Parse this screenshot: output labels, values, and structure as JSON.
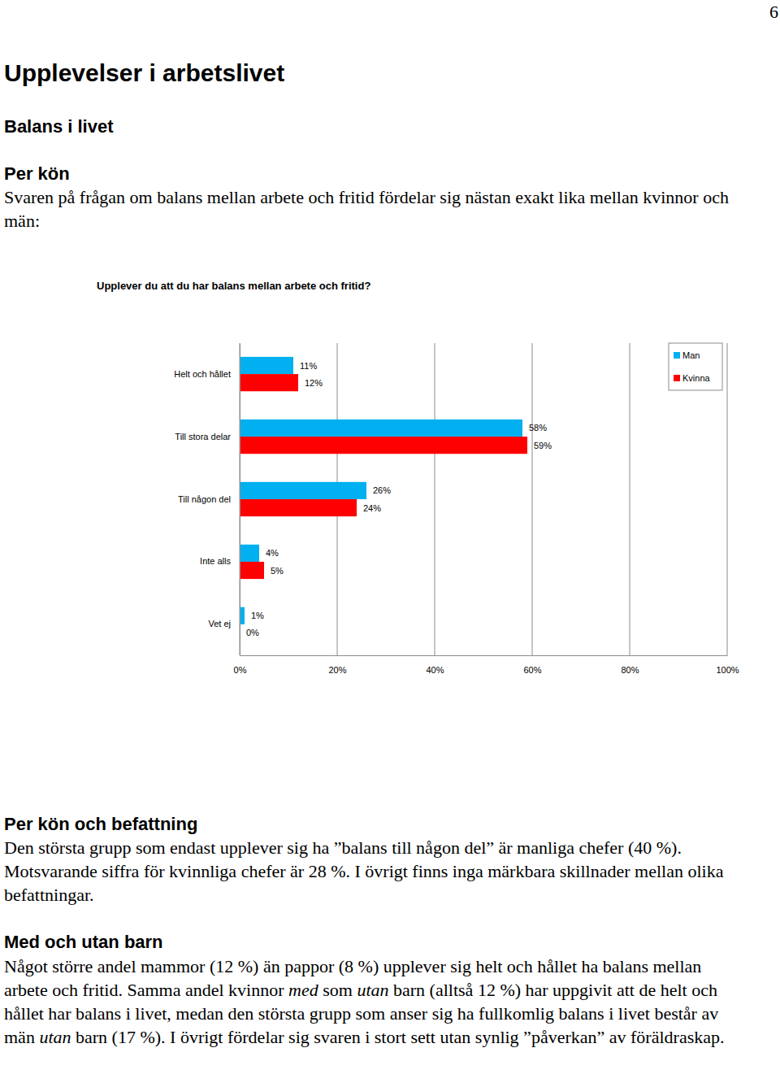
{
  "page_number": "6",
  "title": "Upplevelser i arbetslivet",
  "subtitle": "Balans i livet",
  "sections": [
    {
      "heading": "Per kön",
      "paragraph": [
        "Svaren på frågan om balans mellan arbete och fritid fördelar sig nästan exakt lika mellan kvinnor och män:"
      ]
    },
    {
      "heading": "Per kön och befattning",
      "paragraph": [
        "Den största grupp som endast upplever sig ha ”balans till någon del” är manliga chefer (40 %). Motsvarande siffra för kvinnliga chefer är 28 %. I övrigt finns inga märkbara skillnader mellan olika befattningar."
      ]
    },
    {
      "heading": "Med och utan barn",
      "paragraph": [
        "Något större andel mammor (12 %) än pappor (8 %) upplever sig helt och hållet ha balans mellan arbete och fritid. Samma andel kvinnor ",
        "med",
        " som ",
        "utan",
        " barn (alltså 12 %) har uppgivit att de helt och hållet har balans i livet, medan den största grupp som anser sig ha fullkomlig balans i livet består av män ",
        "utan",
        " barn (17 %). I övrigt fördelar sig svaren i stort sett utan synlig ”påverkan” av föräldraskap."
      ]
    }
  ],
  "chart_data": {
    "type": "bar",
    "orientation": "horizontal",
    "title": "Upplever du att du har balans mellan arbete och fritid?",
    "categories": [
      "Helt och hållet",
      "Till stora delar",
      "Till någon del",
      "Inte alls",
      "Vet ej"
    ],
    "series": [
      {
        "name": "Man",
        "color": "#00b0f0",
        "values": [
          11,
          58,
          26,
          4,
          1
        ],
        "value_labels": [
          "11%",
          "58%",
          "26%",
          "4%",
          "1%"
        ]
      },
      {
        "name": "Kvinna",
        "color": "#ff0000",
        "values": [
          12,
          59,
          24,
          5,
          0
        ],
        "value_labels": [
          "12%",
          "59%",
          "24%",
          "5%",
          "0%"
        ]
      }
    ],
    "xlim": [
      0,
      100
    ],
    "xticks": [
      {
        "value": 0,
        "label": "0%"
      },
      {
        "value": 20,
        "label": "20%"
      },
      {
        "value": 40,
        "label": "40%"
      },
      {
        "value": 60,
        "label": "60%"
      },
      {
        "value": 80,
        "label": "80%"
      },
      {
        "value": 100,
        "label": "100%"
      }
    ],
    "grid": true,
    "legend": "top-right",
    "data_labels": true
  }
}
